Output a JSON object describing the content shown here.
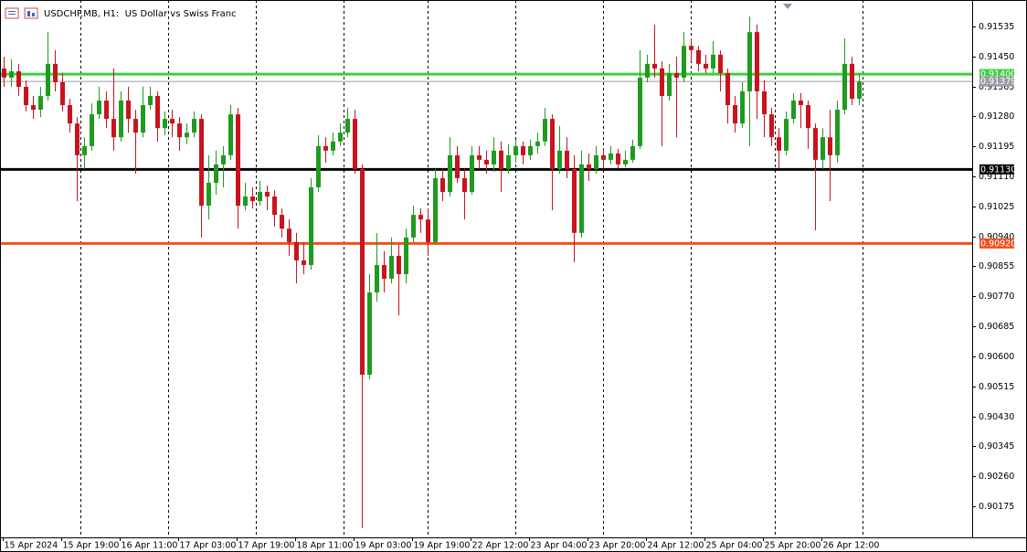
{
  "chart_data": {
    "type": "candlestick",
    "title": "USDCHF.MB, H1:  US Dollar vs Swiss Franc",
    "bull_color": "#1f9b1f",
    "bear_color": "#c8141e",
    "ylim": [
      0.90087,
      0.9161
    ],
    "xlim": [
      -0.5,
      132.5
    ],
    "yticks": [
      0.91535,
      {
        "value": 0.9145,
        "label": "0.91450"
      },
      0.91365,
      {
        "value": 0.9128,
        "label": "0.91280"
      },
      0.91195,
      {
        "value": 0.9111,
        "label": "0.91110"
      },
      0.91025,
      {
        "value": 0.9094,
        "label": "0.90940"
      },
      0.90855,
      {
        "value": 0.9077,
        "label": "0.90770"
      },
      0.90685,
      {
        "value": 0.906,
        "label": "0.90600"
      },
      0.90515,
      {
        "value": 0.9043,
        "label": "0.90430"
      },
      0.90345,
      {
        "value": 0.9026,
        "label": "0.90260"
      },
      0.90175
    ],
    "xticks": [
      {
        "value": 0,
        "label": "15 Apr 2024"
      },
      {
        "value": 8,
        "label": "15 Apr 19:00"
      },
      {
        "value": 16,
        "label": "16 Apr 11:00"
      },
      {
        "value": 24,
        "label": "17 Apr 03:00"
      },
      {
        "value": 32,
        "label": "17 Apr 19:00"
      },
      {
        "value": 40,
        "label": "18 Apr 11:00"
      },
      {
        "value": 48,
        "label": "19 Apr 03:00"
      },
      {
        "value": 56,
        "label": "19 Apr 19:00"
      },
      {
        "value": 64,
        "label": "22 Apr 12:00"
      },
      {
        "value": 72,
        "label": "23 Apr 04:00"
      },
      {
        "value": 80,
        "label": "23 Apr 20:00"
      },
      {
        "value": 88,
        "label": "24 Apr 12:00"
      },
      {
        "value": 96,
        "label": "25 Apr 04:00"
      },
      {
        "value": 104,
        "label": "25 Apr 20:00"
      },
      {
        "value": 112,
        "label": "26 Apr 12:00"
      }
    ],
    "xgrid": [
      10.5,
      22.5,
      34.5,
      46.5,
      58,
      70,
      82,
      94,
      105.5,
      117.5
    ],
    "hlines": [
      {
        "value": 0.914,
        "label": "0.91400",
        "color": "#3fcf3f"
      },
      {
        "value": 0.91379,
        "label": "0.91379",
        "color": "#9a9ea6"
      },
      {
        "value": 0.9113,
        "label": "0.91130",
        "color": "#000000"
      },
      {
        "value": 0.9092,
        "label": "0.90920",
        "color": "#f0501e"
      }
    ],
    "ohlc": [
      [
        0.91416,
        0.91449,
        0.91364,
        0.9139
      ],
      [
        0.9139,
        0.91442,
        0.91364,
        0.91408
      ],
      [
        0.91408,
        0.91429,
        0.91338,
        0.91364
      ],
      [
        0.91364,
        0.91382,
        0.91294,
        0.91312
      ],
      [
        0.91312,
        0.91338,
        0.91273,
        0.91299
      ],
      [
        0.91299,
        0.91364,
        0.91278,
        0.91338
      ],
      [
        0.91338,
        0.91519,
        0.91325,
        0.91429
      ],
      [
        0.91429,
        0.91468,
        0.91351,
        0.91377
      ],
      [
        0.91377,
        0.91403,
        0.91294,
        0.91312
      ],
      [
        0.91312,
        0.9133,
        0.91234,
        0.9126
      ],
      [
        0.9126,
        0.91278,
        0.9104,
        0.9117
      ],
      [
        0.9117,
        0.91221,
        0.91131,
        0.91196
      ],
      [
        0.91196,
        0.91317,
        0.91183,
        0.91286
      ],
      [
        0.91286,
        0.91364,
        0.91273,
        0.91325
      ],
      [
        0.91325,
        0.91351,
        0.91247,
        0.91273
      ],
      [
        0.91273,
        0.91416,
        0.91183,
        0.91221
      ],
      [
        0.91221,
        0.91351,
        0.91209,
        0.91325
      ],
      [
        0.91325,
        0.91364,
        0.91234,
        0.91273
      ],
      [
        0.91273,
        0.91299,
        0.91118,
        0.91234
      ],
      [
        0.91234,
        0.91364,
        0.91221,
        0.91312
      ],
      [
        0.91312,
        0.91364,
        0.91299,
        0.91338
      ],
      [
        0.91338,
        0.91351,
        0.91209,
        0.91247
      ],
      [
        0.91247,
        0.91294,
        0.91227,
        0.91273
      ],
      [
        0.91273,
        0.91299,
        0.91221,
        0.9126
      ],
      [
        0.9126,
        0.91278,
        0.91183,
        0.91221
      ],
      [
        0.91221,
        0.9126,
        0.91201,
        0.91234
      ],
      [
        0.91234,
        0.91294,
        0.91221,
        0.91273
      ],
      [
        0.91273,
        0.91286,
        0.90937,
        0.91027
      ],
      [
        0.91027,
        0.9117,
        0.90988,
        0.91092
      ],
      [
        0.91092,
        0.91183,
        0.91058,
        0.91144
      ],
      [
        0.91144,
        0.91196,
        0.91079,
        0.9117
      ],
      [
        0.9117,
        0.91312,
        0.91157,
        0.91286
      ],
      [
        0.91286,
        0.91304,
        0.90962,
        0.91027
      ],
      [
        0.91027,
        0.91092,
        0.91014,
        0.91053
      ],
      [
        0.91053,
        0.91079,
        0.91019,
        0.9104
      ],
      [
        0.9104,
        0.91097,
        0.91027,
        0.91066
      ],
      [
        0.91066,
        0.91084,
        0.91014,
        0.91053
      ],
      [
        0.91053,
        0.91071,
        0.90968,
        0.91001
      ],
      [
        0.91001,
        0.91019,
        0.90937,
        0.90962
      ],
      [
        0.90962,
        0.90988,
        0.90885,
        0.90924
      ],
      [
        0.90924,
        0.9095,
        0.90807,
        0.90872
      ],
      [
        0.90872,
        0.90924,
        0.90833,
        0.90859
      ],
      [
        0.90859,
        0.91105,
        0.90846,
        0.91079
      ],
      [
        0.91079,
        0.91227,
        0.91066,
        0.91196
      ],
      [
        0.91196,
        0.91221,
        0.91149,
        0.91183
      ],
      [
        0.91183,
        0.91234,
        0.9117,
        0.91209
      ],
      [
        0.91209,
        0.9126,
        0.91196,
        0.91234
      ],
      [
        0.91234,
        0.91304,
        0.91221,
        0.91273
      ],
      [
        0.91273,
        0.91299,
        0.91118,
        0.91131
      ],
      [
        0.91131,
        0.91144,
        0.90113,
        0.90548
      ],
      [
        0.90548,
        0.90833,
        0.90535,
        0.90781
      ],
      [
        0.90781,
        0.9095,
        0.90755,
        0.90859
      ],
      [
        0.90859,
        0.90898,
        0.90781,
        0.9082
      ],
      [
        0.9082,
        0.90937,
        0.90807,
        0.90885
      ],
      [
        0.90885,
        0.90916,
        0.90716,
        0.90833
      ],
      [
        0.90833,
        0.90962,
        0.90807,
        0.90937
      ],
      [
        0.90937,
        0.91027,
        0.90924,
        0.91001
      ],
      [
        0.91001,
        0.91019,
        0.9095,
        0.90988
      ],
      [
        0.90988,
        0.91019,
        0.90885,
        0.90924
      ],
      [
        0.90924,
        0.91131,
        0.90916,
        0.91105
      ],
      [
        0.91105,
        0.91131,
        0.9104,
        0.91066
      ],
      [
        0.91066,
        0.91221,
        0.91053,
        0.9117
      ],
      [
        0.9117,
        0.91196,
        0.91092,
        0.91105
      ],
      [
        0.91105,
        0.91131,
        0.90988,
        0.91066
      ],
      [
        0.91066,
        0.91196,
        0.91058,
        0.9117
      ],
      [
        0.9117,
        0.91196,
        0.91131,
        0.91157
      ],
      [
        0.91157,
        0.91183,
        0.91118,
        0.91144
      ],
      [
        0.91144,
        0.91221,
        0.91123,
        0.91183
      ],
      [
        0.91183,
        0.91209,
        0.91066,
        0.91131
      ],
      [
        0.91131,
        0.91201,
        0.91118,
        0.9117
      ],
      [
        0.9117,
        0.91214,
        0.91149,
        0.91196
      ],
      [
        0.91196,
        0.91209,
        0.91144,
        0.9117
      ],
      [
        0.9117,
        0.91214,
        0.91157,
        0.91196
      ],
      [
        0.91196,
        0.91234,
        0.91175,
        0.91209
      ],
      [
        0.91209,
        0.91304,
        0.91196,
        0.91273
      ],
      [
        0.91273,
        0.91286,
        0.91014,
        0.91131
      ],
      [
        0.91131,
        0.91253,
        0.91118,
        0.91183
      ],
      [
        0.91183,
        0.91221,
        0.91105,
        0.91131
      ],
      [
        0.91131,
        0.9117,
        0.90867,
        0.9095
      ],
      [
        0.9095,
        0.91183,
        0.90937,
        0.91144
      ],
      [
        0.91144,
        0.91175,
        0.91097,
        0.91131
      ],
      [
        0.91131,
        0.91196,
        0.91118,
        0.9117
      ],
      [
        0.9117,
        0.91188,
        0.91131,
        0.91157
      ],
      [
        0.91157,
        0.91196,
        0.91144,
        0.91175
      ],
      [
        0.91175,
        0.91188,
        0.91131,
        0.91144
      ],
      [
        0.91144,
        0.91183,
        0.91136,
        0.91157
      ],
      [
        0.91157,
        0.91214,
        0.91149,
        0.91196
      ],
      [
        0.91196,
        0.91468,
        0.91188,
        0.9139
      ],
      [
        0.9139,
        0.91455,
        0.91377,
        0.91429
      ],
      [
        0.91429,
        0.9154,
        0.9139,
        0.91416
      ],
      [
        0.91416,
        0.91436,
        0.91196,
        0.91338
      ],
      [
        0.91338,
        0.91429,
        0.91325,
        0.91403
      ],
      [
        0.91403,
        0.91449,
        0.91221,
        0.9139
      ],
      [
        0.9139,
        0.91519,
        0.91377,
        0.9148
      ],
      [
        0.9148,
        0.91501,
        0.91436,
        0.91468
      ],
      [
        0.91468,
        0.9148,
        0.91408,
        0.91429
      ],
      [
        0.91429,
        0.91455,
        0.91403,
        0.91416
      ],
      [
        0.91416,
        0.91493,
        0.91403,
        0.91455
      ],
      [
        0.91455,
        0.91468,
        0.91351,
        0.91403
      ],
      [
        0.91403,
        0.91416,
        0.9126,
        0.91312
      ],
      [
        0.91312,
        0.91338,
        0.91234,
        0.9126
      ],
      [
        0.9126,
        0.91377,
        0.91247,
        0.91351
      ],
      [
        0.91351,
        0.91563,
        0.91196,
        0.91519
      ],
      [
        0.91519,
        0.9154,
        0.91273,
        0.91351
      ],
      [
        0.91351,
        0.91382,
        0.91221,
        0.91286
      ],
      [
        0.91286,
        0.91304,
        0.91196,
        0.91221
      ],
      [
        0.91221,
        0.91247,
        0.91131,
        0.91183
      ],
      [
        0.91183,
        0.91294,
        0.9117,
        0.91273
      ],
      [
        0.91273,
        0.91346,
        0.9126,
        0.91325
      ],
      [
        0.91325,
        0.91346,
        0.91247,
        0.91312
      ],
      [
        0.91312,
        0.91325,
        0.91188,
        0.91247
      ],
      [
        0.91247,
        0.9126,
        0.90957,
        0.91157
      ],
      [
        0.91157,
        0.91247,
        0.91131,
        0.91221
      ],
      [
        0.91221,
        0.91299,
        0.9104,
        0.9117
      ],
      [
        0.9117,
        0.91325,
        0.91149,
        0.91299
      ],
      [
        0.91299,
        0.91501,
        0.91286,
        0.91429
      ],
      [
        0.91429,
        0.91449,
        0.91312,
        0.9133
      ],
      [
        0.9133,
        0.91403,
        0.91312,
        0.91379
      ]
    ]
  }
}
